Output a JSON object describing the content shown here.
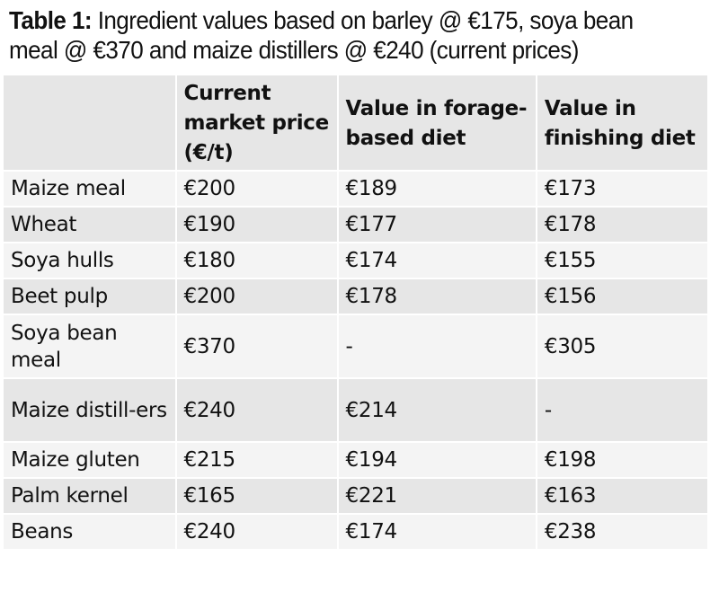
{
  "title": {
    "label": "Table 1:",
    "text": " Ingredient values based on barley @ €175, soya bean",
    "text2": "meal @ €370 and maize distillers @ €240 (current prices)"
  },
  "table": {
    "headers": [
      "",
      "Current market price (€/t)",
      "Value in forage-based diet",
      "Value in finishing diet"
    ],
    "rows": [
      [
        "Maize meal",
        "€200",
        "€189",
        "€173"
      ],
      [
        "Wheat",
        "€190",
        "€177",
        "€178"
      ],
      [
        "Soya hulls",
        "€180",
        "€174",
        "€155"
      ],
      [
        "Beet pulp",
        "€200",
        "€178",
        "€156"
      ],
      [
        "Soya bean meal",
        "€370",
        "-",
        "€305"
      ],
      [
        "Maize distill-ers",
        "€240",
        "€214",
        "-"
      ],
      [
        "Maize gluten",
        "€215",
        "€194",
        "€198"
      ],
      [
        "Palm kernel",
        "€165",
        "€221",
        "€163"
      ],
      [
        "Beans",
        "€240",
        "€174",
        "€238"
      ]
    ]
  }
}
